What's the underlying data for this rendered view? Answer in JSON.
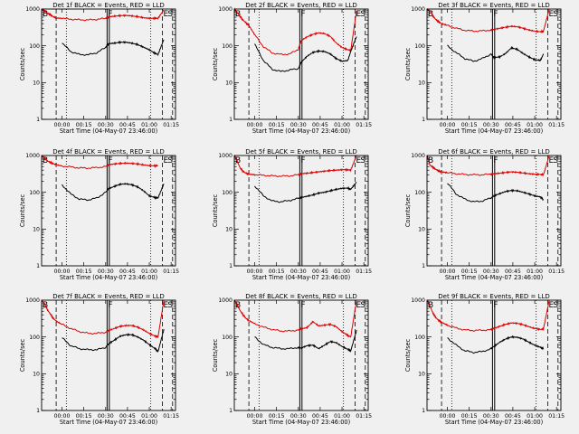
{
  "chart_data": {
    "type": "line",
    "layout": "3x3 grid",
    "shared": {
      "xlabel": "Start Time (04-May-07 23:46:00)",
      "ylabel": "Counts/sec",
      "yscale": "log",
      "ylim": [
        1,
        1000
      ],
      "yticks": [
        "1",
        "10",
        "100",
        "1000"
      ],
      "xlim_minutes_from_start": [
        0,
        92
      ],
      "xticks": [
        {
          "label": "00:00",
          "t": 14
        },
        {
          "label": "00:15",
          "t": 29
        },
        {
          "label": "00:30",
          "t": 44
        },
        {
          "label": "00:45",
          "t": 59
        },
        {
          "label": "01:00",
          "t": 74
        },
        {
          "label": "01:15",
          "t": 89
        }
      ],
      "series_names": [
        "Events",
        "LLD"
      ],
      "series_colors": {
        "Events": "#000000",
        "LLD": "#dd0000"
      },
      "markers": {
        "B": "B",
        "F": "F",
        "E": "E",
        "S": "S"
      },
      "time_unit": "minutes from 23:46:00"
    },
    "panels": [
      {
        "title": "Det 1f BLACK = Events, RED = LLD",
        "t": [
          0,
          2,
          4,
          6,
          8,
          10,
          14,
          20,
          26,
          32,
          38,
          44,
          46,
          50,
          54,
          58,
          62,
          66,
          70,
          74,
          78,
          80,
          84,
          86
        ],
        "events": [
          null,
          null,
          null,
          null,
          null,
          null,
          120,
          70,
          58,
          57,
          65,
          90,
          115,
          118,
          125,
          125,
          118,
          108,
          92,
          78,
          62,
          58,
          150,
          null
        ],
        "lld": [
          1000,
          900,
          780,
          700,
          620,
          570,
          560,
          530,
          510,
          505,
          525,
          560,
          610,
          640,
          660,
          670,
          650,
          620,
          580,
          560,
          560,
          560,
          950,
          null
        ]
      },
      {
        "title": "Det 2f BLACK = Events, RED = LLD",
        "t": [
          0,
          2,
          4,
          6,
          8,
          10,
          14,
          20,
          26,
          32,
          38,
          44,
          46,
          50,
          54,
          58,
          62,
          66,
          70,
          74,
          78,
          80,
          84,
          86
        ],
        "events": [
          null,
          null,
          null,
          null,
          null,
          null,
          110,
          40,
          23,
          20,
          22,
          24,
          36,
          52,
          66,
          72,
          70,
          60,
          45,
          38,
          40,
          70,
          180,
          null
        ],
        "lld": [
          1000,
          800,
          620,
          500,
          420,
          360,
          200,
          95,
          64,
          58,
          60,
          80,
          140,
          175,
          205,
          225,
          215,
          180,
          120,
          90,
          78,
          75,
          900,
          null
        ]
      },
      {
        "title": "Det 3f BLACK = Events, RED = LLD",
        "t": [
          0,
          2,
          4,
          6,
          8,
          10,
          14,
          20,
          26,
          32,
          38,
          44,
          46,
          50,
          54,
          58,
          62,
          66,
          70,
          74,
          78,
          80,
          84,
          86
        ],
        "events": [
          null,
          null,
          null,
          null,
          null,
          null,
          100,
          65,
          45,
          38,
          45,
          60,
          48,
          50,
          62,
          88,
          80,
          62,
          50,
          42,
          40,
          60,
          null,
          null
        ],
        "lld": [
          1000,
          900,
          650,
          520,
          450,
          400,
          360,
          300,
          265,
          250,
          255,
          270,
          280,
          300,
          320,
          340,
          330,
          300,
          270,
          250,
          240,
          250,
          1000,
          null
        ]
      },
      {
        "title": "Det 4f BLACK = Events, RED = LLD",
        "t": [
          0,
          2,
          4,
          6,
          8,
          10,
          14,
          20,
          26,
          32,
          38,
          44,
          46,
          50,
          54,
          58,
          62,
          66,
          70,
          74,
          78,
          80,
          84,
          86
        ],
        "events": [
          null,
          null,
          null,
          null,
          null,
          null,
          160,
          90,
          65,
          62,
          70,
          100,
          125,
          145,
          165,
          170,
          160,
          140,
          110,
          80,
          72,
          70,
          170,
          null
        ],
        "lld": [
          1000,
          850,
          720,
          650,
          600,
          560,
          520,
          490,
          460,
          455,
          470,
          500,
          560,
          590,
          610,
          620,
          610,
          590,
          555,
          530,
          525,
          530,
          null,
          null
        ]
      },
      {
        "title": "Det 5f BLACK = Events, RED = LLD",
        "t": [
          0,
          2,
          4,
          6,
          8,
          10,
          14,
          20,
          26,
          32,
          38,
          44,
          46,
          50,
          54,
          58,
          62,
          66,
          70,
          74,
          78,
          80,
          84,
          86
        ],
        "events": [
          null,
          null,
          null,
          null,
          null,
          null,
          150,
          80,
          58,
          55,
          60,
          68,
          72,
          78,
          85,
          95,
          100,
          110,
          120,
          128,
          130,
          120,
          190,
          null
        ],
        "lld": [
          1000,
          700,
          460,
          370,
          330,
          310,
          300,
          290,
          280,
          275,
          280,
          300,
          320,
          330,
          345,
          360,
          375,
          390,
          400,
          410,
          410,
          400,
          1000,
          null
        ]
      },
      {
        "title": "Det 6f BLACK = Events, RED = LLD",
        "t": [
          0,
          2,
          4,
          6,
          8,
          10,
          14,
          20,
          26,
          32,
          38,
          44,
          46,
          50,
          54,
          58,
          62,
          66,
          70,
          74,
          78,
          80,
          84,
          86
        ],
        "events": [
          null,
          null,
          null,
          null,
          null,
          null,
          180,
          90,
          65,
          55,
          58,
          70,
          80,
          92,
          105,
          112,
          110,
          100,
          90,
          80,
          75,
          62,
          null,
          null
        ],
        "lld": [
          1000,
          550,
          480,
          420,
          380,
          360,
          340,
          320,
          305,
          300,
          300,
          310,
          320,
          330,
          345,
          360,
          350,
          335,
          320,
          310,
          305,
          300,
          1000,
          null
        ]
      },
      {
        "title": "Det 7f BLACK = Events, RED = LLD",
        "t": [
          0,
          2,
          4,
          6,
          8,
          10,
          14,
          20,
          26,
          32,
          38,
          44,
          46,
          50,
          54,
          58,
          62,
          66,
          70,
          74,
          78,
          80,
          84,
          86
        ],
        "events": [
          null,
          null,
          null,
          null,
          null,
          null,
          95,
          58,
          48,
          45,
          45,
          52,
          65,
          82,
          105,
          115,
          115,
          100,
          82,
          62,
          48,
          40,
          160,
          null
        ],
        "lld": [
          1000,
          800,
          550,
          420,
          320,
          270,
          220,
          170,
          140,
          125,
          125,
          135,
          150,
          170,
          195,
          205,
          205,
          185,
          155,
          125,
          105,
          100,
          1000,
          null
        ]
      },
      {
        "title": "Det 8f BLACK = Events, RED = LLD",
        "t": [
          0,
          2,
          4,
          6,
          8,
          10,
          14,
          20,
          26,
          32,
          38,
          44,
          46,
          50,
          54,
          58,
          62,
          66,
          70,
          74,
          78,
          80,
          84,
          86
        ],
        "events": [
          null,
          null,
          null,
          null,
          null,
          null,
          100,
          62,
          52,
          48,
          48,
          52,
          50,
          58,
          60,
          48,
          60,
          75,
          70,
          55,
          46,
          42,
          150,
          null
        ],
        "lld": [
          1000,
          750,
          520,
          400,
          320,
          280,
          230,
          185,
          160,
          145,
          145,
          155,
          165,
          180,
          260,
          200,
          210,
          220,
          190,
          140,
          110,
          100,
          1000,
          null
        ]
      },
      {
        "title": "Det 9f BLACK = Events, RED = LLD",
        "t": [
          0,
          2,
          4,
          6,
          8,
          10,
          14,
          20,
          26,
          32,
          38,
          44,
          46,
          50,
          54,
          58,
          62,
          66,
          70,
          74,
          78,
          80,
          84,
          86
        ],
        "events": [
          null,
          null,
          null,
          null,
          null,
          null,
          95,
          60,
          42,
          38,
          40,
          48,
          55,
          72,
          88,
          100,
          98,
          88,
          72,
          60,
          52,
          48,
          null,
          null
        ],
        "lld": [
          1000,
          700,
          450,
          340,
          280,
          250,
          210,
          175,
          155,
          150,
          152,
          158,
          170,
          195,
          220,
          240,
          235,
          215,
          190,
          170,
          160,
          165,
          1000,
          null
        ]
      }
    ]
  }
}
